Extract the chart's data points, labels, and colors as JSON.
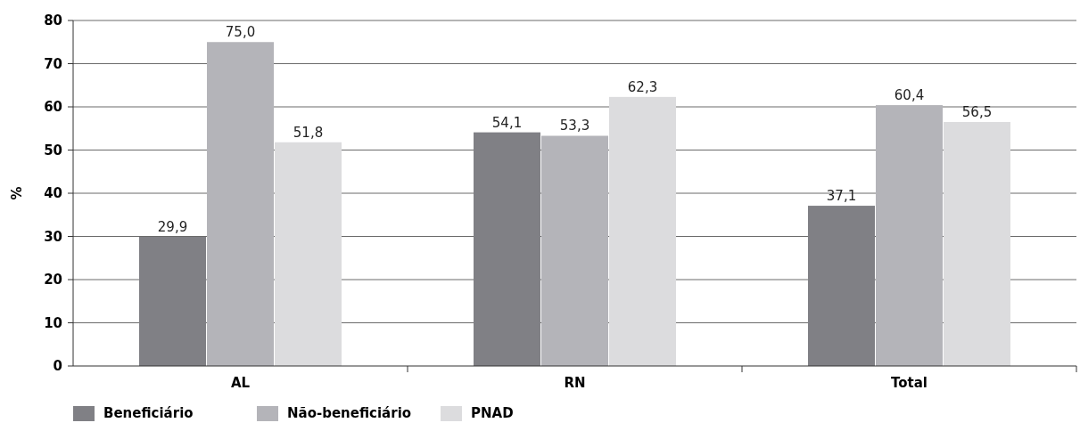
{
  "chart_data": {
    "type": "bar",
    "ylabel": "%",
    "categories": [
      "AL",
      "RN",
      "Total"
    ],
    "series": [
      {
        "name": "Beneficiário",
        "color": "#808085",
        "values": [
          29.9,
          54.1,
          37.1
        ],
        "value_labels": [
          "29,9",
          "54,1",
          "37,1"
        ]
      },
      {
        "name": "Não-beneficiário",
        "color": "#b4b4b9",
        "values": [
          75.0,
          53.3,
          60.4
        ],
        "value_labels": [
          "75,0",
          "53,3",
          "60,4"
        ]
      },
      {
        "name": "PNAD",
        "color": "#dcdcde",
        "values": [
          51.8,
          62.3,
          56.5
        ],
        "value_labels": [
          "51,8",
          "62,3",
          "56,5"
        ]
      }
    ],
    "ylim": [
      0,
      80
    ],
    "yticks": [
      0,
      10,
      20,
      30,
      40,
      50,
      60,
      70,
      80
    ],
    "grid": "y",
    "legend": "bottom left"
  }
}
